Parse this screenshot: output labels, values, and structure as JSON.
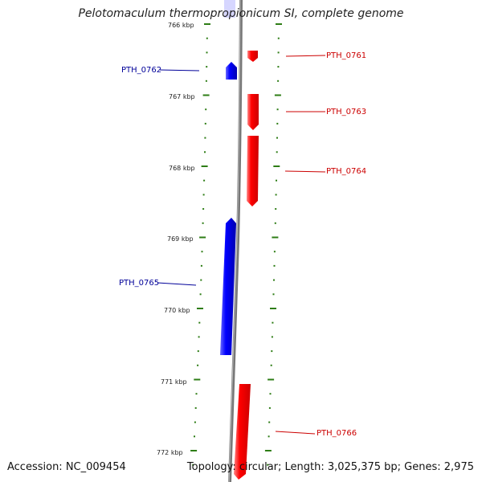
{
  "title": "Pelotomaculum thermopropionicum SI, complete genome",
  "accession": "Accession: NC_009454",
  "topology": "Topology: circular; Length: 3,025,375 bp; Genes: 2,975",
  "scale_labels": [
    "766 kbp",
    "767 kbp",
    "768 kbp",
    "769 kbp",
    "770 kbp",
    "771 kbp",
    "772 kbp"
  ],
  "genes": [
    {
      "id": "PTH_0761",
      "strand": "+"
    },
    {
      "id": "PTH_0762",
      "strand": "-"
    },
    {
      "id": "PTH_0763",
      "strand": "+"
    },
    {
      "id": "PTH_0764",
      "strand": "+"
    },
    {
      "id": "PTH_0765",
      "strand": "-"
    },
    {
      "id": "PTH_0766",
      "strand": "+"
    }
  ],
  "colors": {
    "plus_strand": "#ff0000",
    "minus_strand": "#0000ff",
    "backbone": "#777777",
    "ticks": "#2e7d16",
    "plus_label": "#cc0000",
    "minus_label": "#000099"
  }
}
